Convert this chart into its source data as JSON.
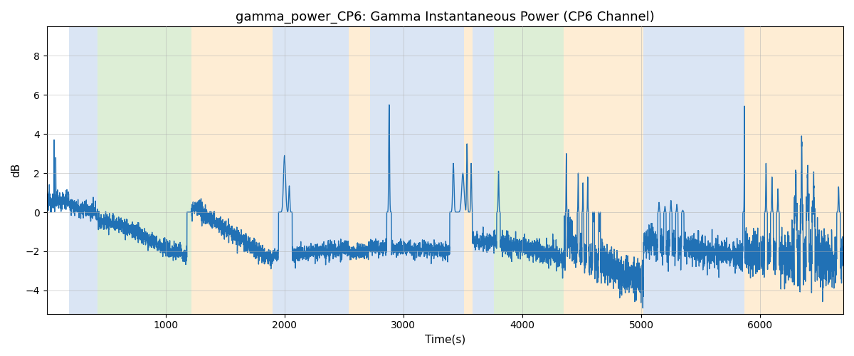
{
  "title": "gamma_power_CP6: Gamma Instantaneous Power (CP6 Channel)",
  "xlabel": "Time(s)",
  "ylabel": "dB",
  "xlim": [
    0,
    6700
  ],
  "ylim": [
    -5.2,
    9.5
  ],
  "line_color": "#2171b5",
  "line_width": 1.0,
  "bg_regions": [
    {
      "xmin": 190,
      "xmax": 430,
      "color": "#aec6e8",
      "alpha": 0.45
    },
    {
      "xmin": 430,
      "xmax": 1220,
      "color": "#b5dba4",
      "alpha": 0.45
    },
    {
      "xmin": 1220,
      "xmax": 1900,
      "color": "#fdd9a0",
      "alpha": 0.45
    },
    {
      "xmin": 1900,
      "xmax": 2540,
      "color": "#aec6e8",
      "alpha": 0.45
    },
    {
      "xmin": 2540,
      "xmax": 2720,
      "color": "#fdd9a0",
      "alpha": 0.45
    },
    {
      "xmin": 2720,
      "xmax": 3510,
      "color": "#aec6e8",
      "alpha": 0.45
    },
    {
      "xmin": 3510,
      "xmax": 3580,
      "color": "#fdd9a0",
      "alpha": 0.45
    },
    {
      "xmin": 3580,
      "xmax": 3760,
      "color": "#aec6e8",
      "alpha": 0.45
    },
    {
      "xmin": 3760,
      "xmax": 4350,
      "color": "#b5dba4",
      "alpha": 0.45
    },
    {
      "xmin": 4350,
      "xmax": 4430,
      "color": "#fdd9a0",
      "alpha": 0.45
    },
    {
      "xmin": 4430,
      "xmax": 5020,
      "color": "#fdd9a0",
      "alpha": 0.45
    },
    {
      "xmin": 5020,
      "xmax": 5870,
      "color": "#aec6e8",
      "alpha": 0.45
    },
    {
      "xmin": 5870,
      "xmax": 6700,
      "color": "#fdd9a0",
      "alpha": 0.45
    }
  ],
  "yticks": [
    -4,
    -2,
    0,
    2,
    4,
    6,
    8
  ],
  "xticks": [
    1000,
    2000,
    3000,
    4000,
    5000,
    6000
  ],
  "grid_color": "#b0b0b0",
  "grid_alpha": 0.7,
  "figsize": [
    12,
    5
  ],
  "dpi": 100
}
